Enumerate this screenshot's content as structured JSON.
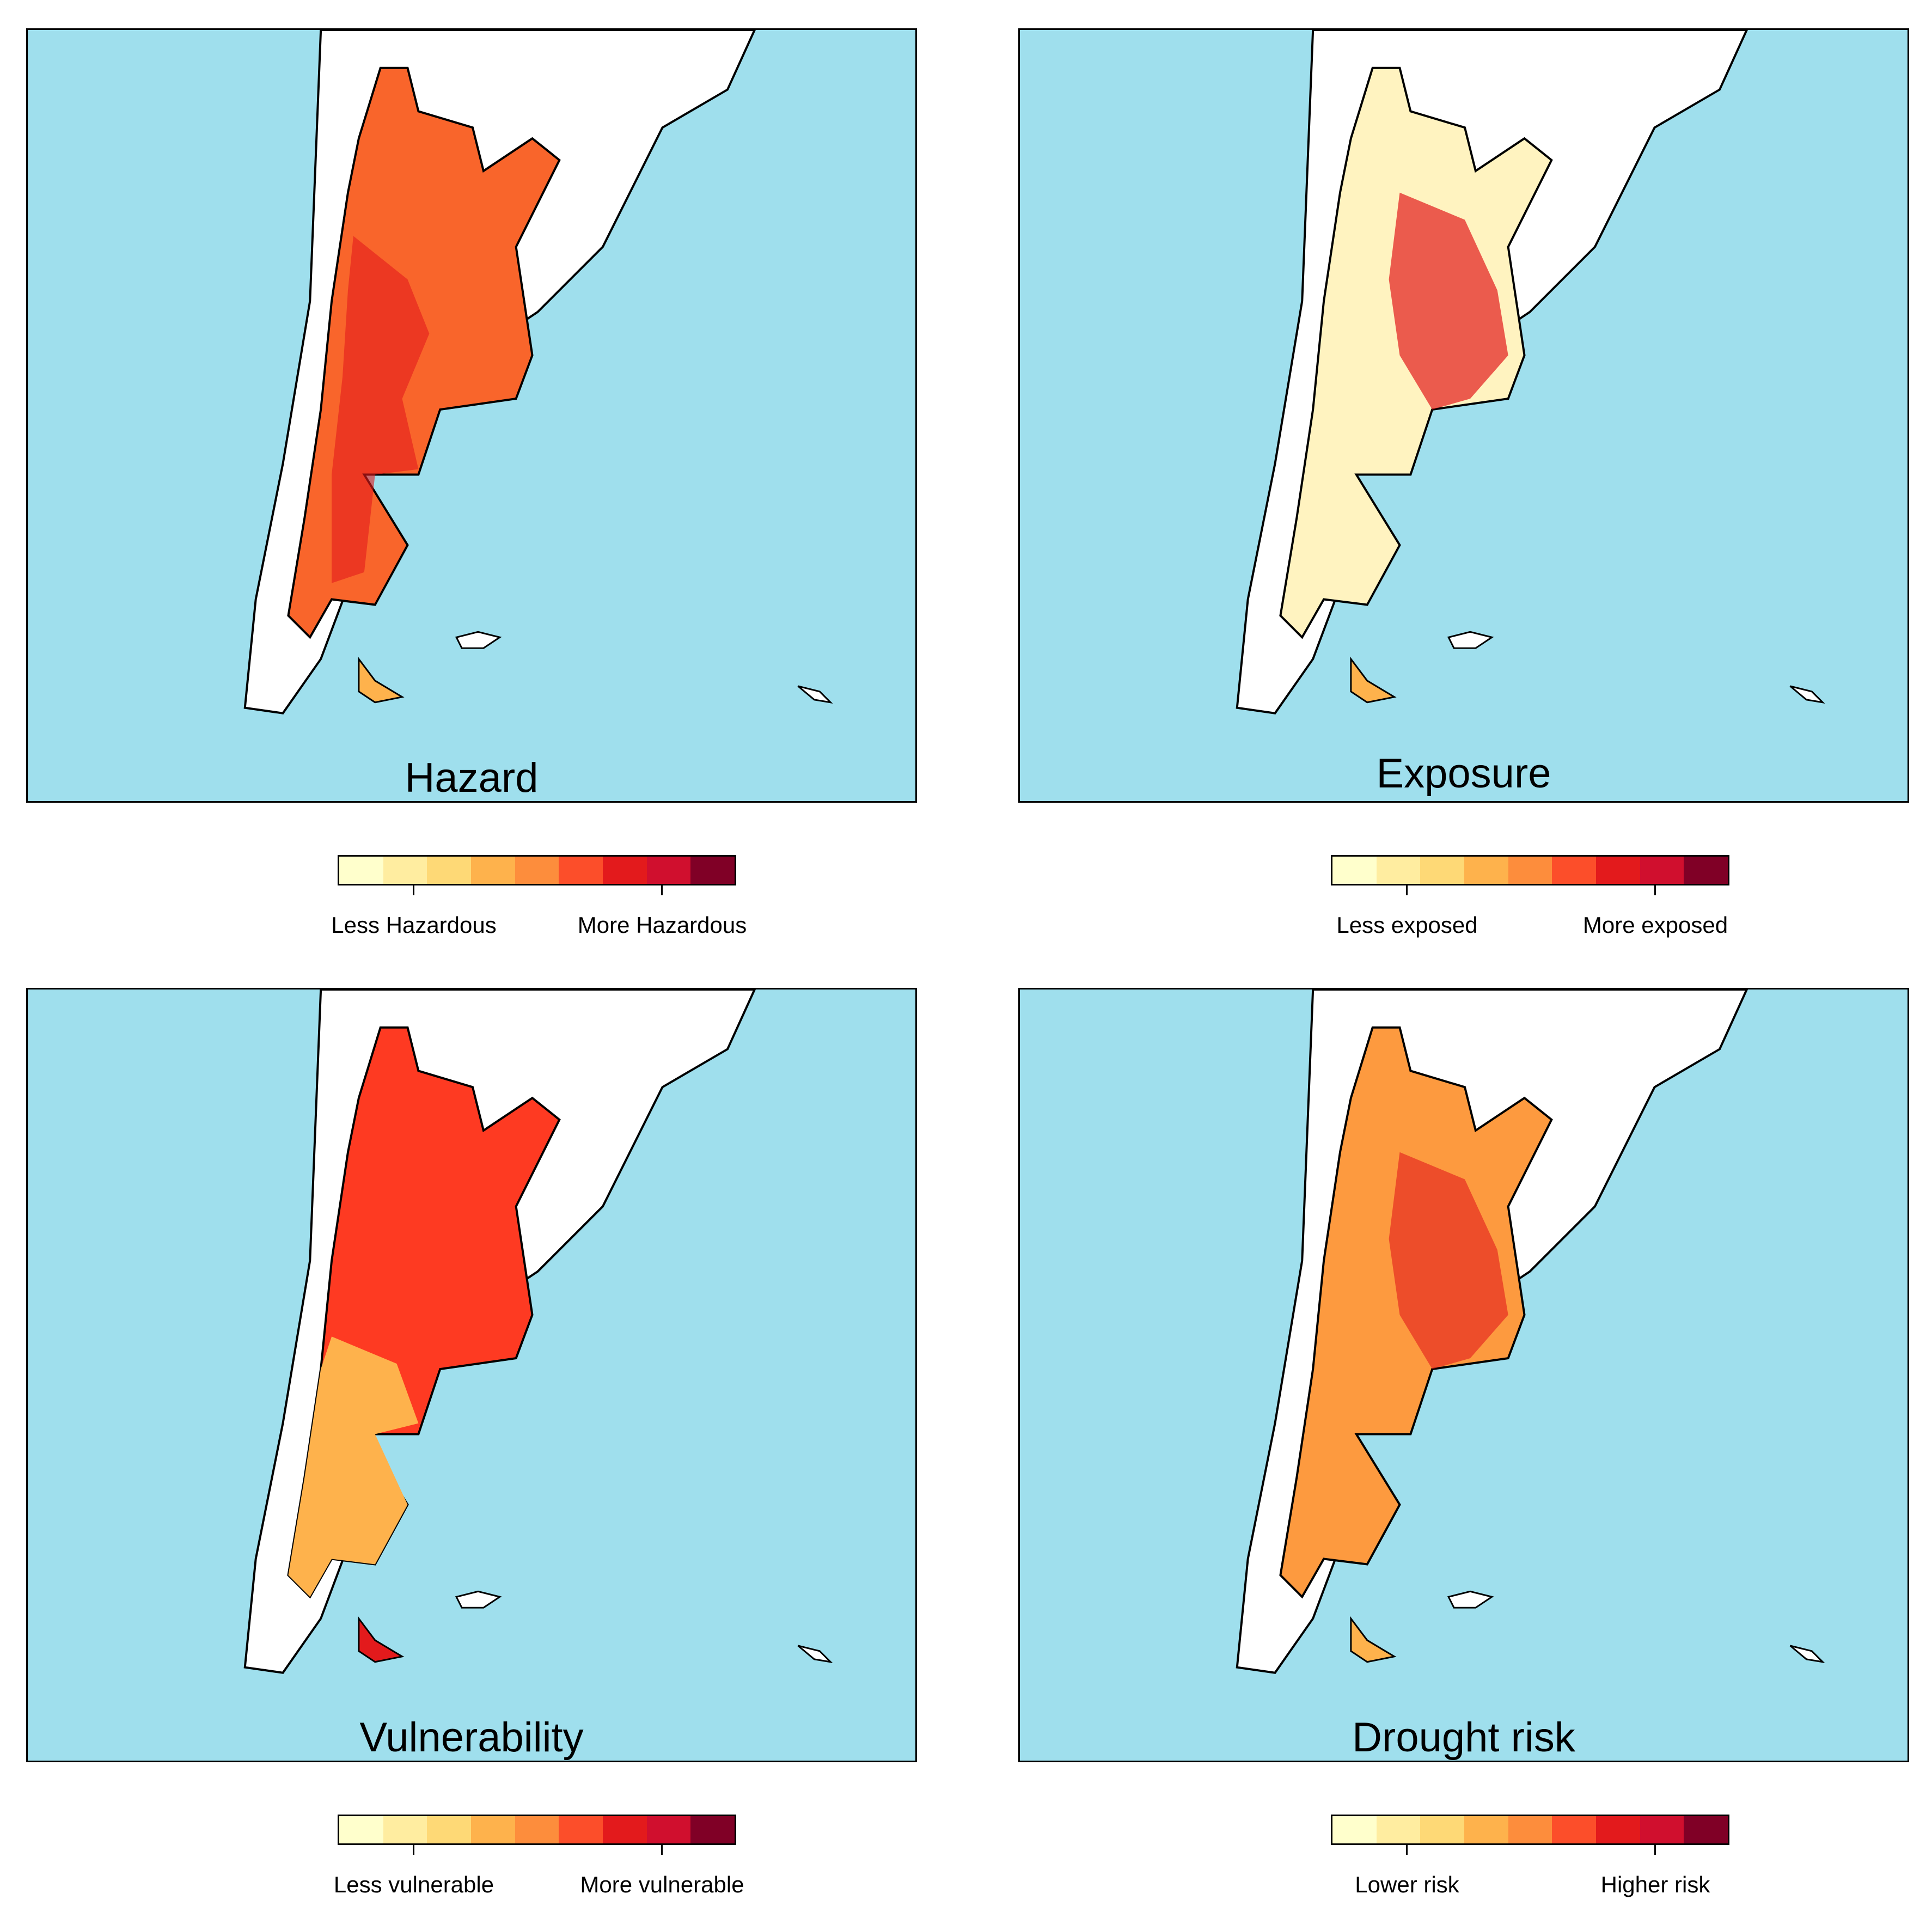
{
  "palette": [
    "#ffffcc",
    "#ffeda0",
    "#fed976",
    "#feb24c",
    "#fd8d3c",
    "#fc4e2a",
    "#e31a1c",
    "#d00f2e",
    "#800026"
  ],
  "colors": {
    "ocean": "#9fdfed",
    "land": "#ffffff",
    "border": "#000000"
  },
  "panels": [
    {
      "id": "hazard",
      "title": "Hazard",
      "legend_low": "Less Hazardous",
      "legend_high": "More Hazardous",
      "fill": "#f9652b",
      "accent": "#e31a1c"
    },
    {
      "id": "exposure",
      "title": "Exposure",
      "legend_low": "Less exposed",
      "legend_high": "More exposed",
      "fill": "#fff3c0",
      "accent": "#e31a1c"
    },
    {
      "id": "vulnerability",
      "title": "Vulnerability",
      "legend_low": "Less vulnerable",
      "legend_high": "More vulnerable",
      "fill": "#fe3a22",
      "accent": "#feb24c"
    },
    {
      "id": "drought-risk",
      "title": "Drought risk",
      "legend_low": "Lower risk",
      "legend_high": "Higher risk",
      "fill": "#fd9a3f",
      "accent": "#e31a1c"
    }
  ]
}
